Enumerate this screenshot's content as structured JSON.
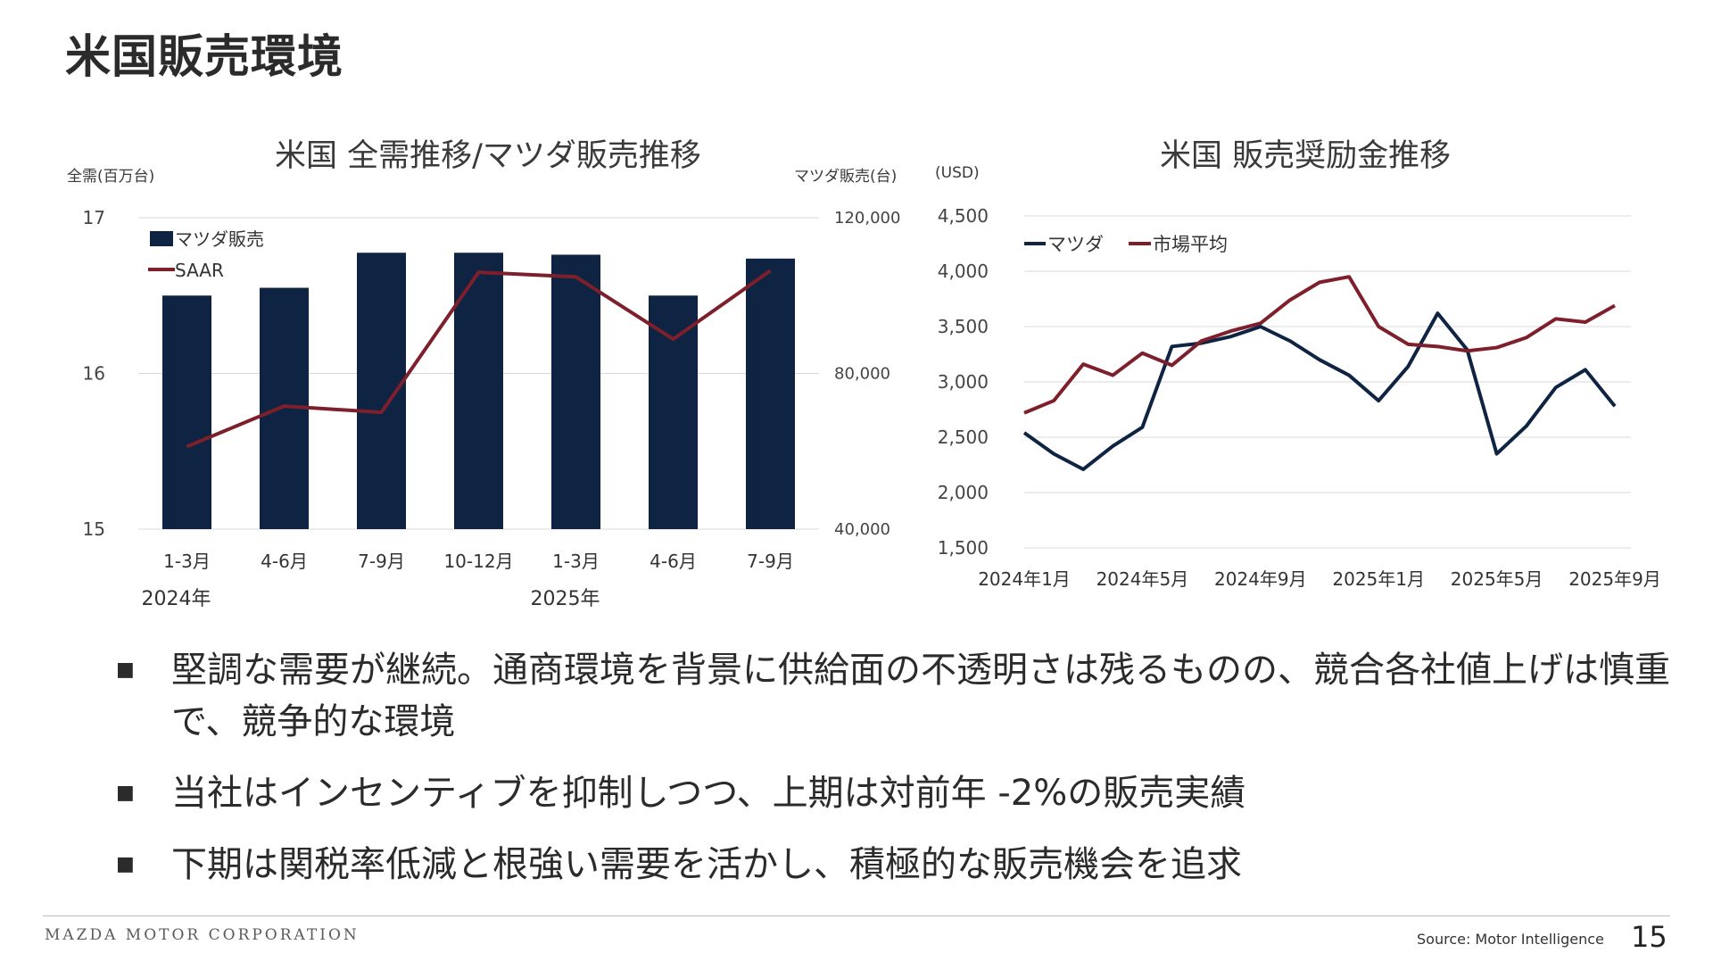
{
  "page": {
    "title": "米国販売環境",
    "company": "MAZDA MOTOR CORPORATION",
    "source": "Source: Motor Intelligence",
    "page_number": "15"
  },
  "bullets": [
    "堅調な需要が継続。通商環境を背景に供給面の不透明さは残るものの、競合各社値上げは慎重で、競争的な環境",
    "当社はインセンティブを抑制しつつ、上期は対前年 -2%の販売実績",
    "下期は関税率低減と根強い需要を活かし、積極的な販売機会を追求"
  ],
  "colors": {
    "navy": "#0f2442",
    "maroon": "#7e1f2c",
    "grid": "#d9d9d9"
  },
  "chart_data": [
    {
      "type": "bar+line",
      "title": "米国 全需推移/マツダ販売推移",
      "y_left_label": "全需(百万台)",
      "y_right_label": "マツダ販売(台)",
      "y_left_ticks": [
        "17",
        "16",
        "15"
      ],
      "y_right_ticks": [
        "120,000",
        "80,000",
        "40,000"
      ],
      "y_left_range": [
        15,
        17
      ],
      "y_right_range": [
        40000,
        120000
      ],
      "categories": [
        "1-3月",
        "4-6月",
        "7-9月",
        "10-12月",
        "1-3月",
        "4-6月",
        "7-9月"
      ],
      "year_labels": [
        "2024年",
        "2025年"
      ],
      "legend_position": "top-left",
      "grid": true,
      "series": [
        {
          "name": "マツダ販売",
          "axis": "right",
          "kind": "bar",
          "color": "#0f2442",
          "values": [
            100000,
            102000,
            111000,
            111000,
            110500,
            100000,
            109500
          ]
        },
        {
          "name": "SAAR",
          "axis": "left",
          "kind": "line",
          "color": "#7e1f2c",
          "values": [
            15.53,
            15.79,
            15.75,
            16.65,
            16.62,
            16.22,
            16.66
          ]
        }
      ]
    },
    {
      "type": "line",
      "title": "米国 販売奨励金推移",
      "y_label": "(USD)",
      "y_ticks": [
        "4,500",
        "4,000",
        "3,500",
        "3,000",
        "2,500",
        "2,000",
        "1,500"
      ],
      "y_range": [
        1500,
        4500
      ],
      "x_tick_labels": [
        "2024年1月",
        "2024年5月",
        "2024年9月",
        "2025年1月",
        "2025年5月",
        "2025年9月"
      ],
      "x": [
        "2024-01",
        "2024-02",
        "2024-03",
        "2024-04",
        "2024-05",
        "2024-06",
        "2024-07",
        "2024-08",
        "2024-09",
        "2024-10",
        "2024-11",
        "2024-12",
        "2025-01",
        "2025-02",
        "2025-03",
        "2025-04",
        "2025-05",
        "2025-06",
        "2025-07",
        "2025-08",
        "2025-09"
      ],
      "legend_position": "top-left",
      "grid": true,
      "series": [
        {
          "name": "マツダ",
          "color": "#0f2442",
          "values": [
            2540,
            2350,
            2210,
            2420,
            2590,
            3320,
            3350,
            3410,
            3500,
            3370,
            3200,
            3060,
            2830,
            3140,
            3620,
            3290,
            2350,
            2600,
            2950,
            3110,
            2780
          ]
        },
        {
          "name": "市場平均",
          "color": "#7e1f2c",
          "values": [
            2720,
            2830,
            3160,
            3060,
            3260,
            3150,
            3370,
            3460,
            3530,
            3740,
            3900,
            3950,
            3500,
            3340,
            3320,
            3280,
            3310,
            3400,
            3570,
            3540,
            3690
          ]
        }
      ]
    }
  ]
}
